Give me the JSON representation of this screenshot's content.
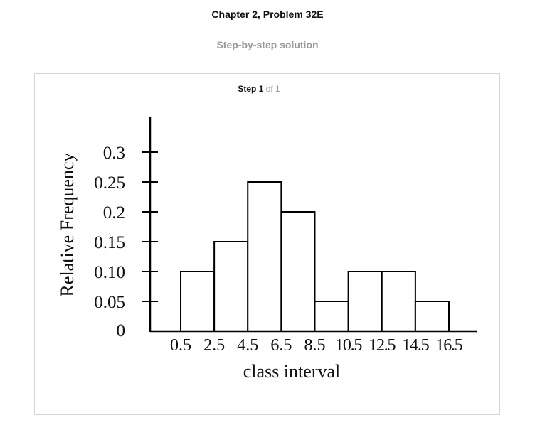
{
  "header": {
    "title": "Chapter 2, Problem 32E",
    "subtitle": "Step-by-step solution"
  },
  "step": {
    "label": "Step 1",
    "total": "of 1"
  },
  "chart_data": {
    "type": "bar",
    "xlabel": "class interval",
    "ylabel": "Relative Frequency",
    "x_tick_labels": [
      "0.5",
      "2.5",
      "4.5",
      "6.5",
      "8.5",
      "10.5",
      "12.5",
      "14.5",
      "16.5"
    ],
    "y_tick_labels": [
      "0",
      "0.05",
      "0.10",
      "0.15",
      "0.2",
      "0.25",
      "0.3"
    ],
    "y_ticks": [
      0,
      0.05,
      0.1,
      0.15,
      0.2,
      0.25,
      0.3
    ],
    "bins": [
      {
        "from": 0.5,
        "to": 2.5,
        "value": 0.1
      },
      {
        "from": 2.5,
        "to": 4.5,
        "value": 0.15
      },
      {
        "from": 4.5,
        "to": 6.5,
        "value": 0.25
      },
      {
        "from": 6.5,
        "to": 8.5,
        "value": 0.2
      },
      {
        "from": 8.5,
        "to": 10.5,
        "value": 0.05
      },
      {
        "from": 10.5,
        "to": 12.5,
        "value": 0.1
      },
      {
        "from": 12.5,
        "to": 14.5,
        "value": 0.1
      },
      {
        "from": 14.5,
        "to": 16.5,
        "value": 0.05
      }
    ],
    "ylim": [
      0,
      0.3
    ],
    "xlim": [
      0.5,
      16.5
    ],
    "grid": false,
    "bar_color": "#ffffff",
    "edge_color": "#000000"
  }
}
